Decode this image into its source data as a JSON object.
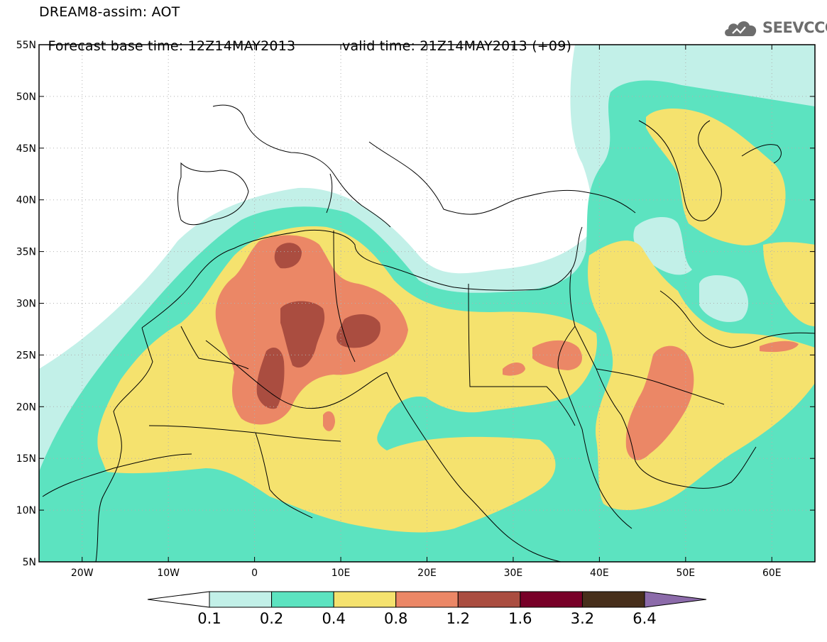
{
  "header": {
    "title": "DREAM8-assim: AOT",
    "forecast_base": "Forecast base time: 12Z14MAY2013",
    "valid_time": "valid time: 21Z14MAY2013 (+09)",
    "logo_text": "SEEVCCC",
    "logo_icon": "cloud-logo-icon"
  },
  "map": {
    "lon_range": [
      -25,
      65
    ],
    "lat_range": [
      5,
      55
    ],
    "lat_ticks": [
      {
        "value": 55,
        "label": "55N"
      },
      {
        "value": 50,
        "label": "50N"
      },
      {
        "value": 45,
        "label": "45N"
      },
      {
        "value": 40,
        "label": "40N"
      },
      {
        "value": 35,
        "label": "35N"
      },
      {
        "value": 30,
        "label": "30N"
      },
      {
        "value": 25,
        "label": "25N"
      },
      {
        "value": 20,
        "label": "20N"
      },
      {
        "value": 15,
        "label": "15N"
      },
      {
        "value": 10,
        "label": "10N"
      },
      {
        "value": 5,
        "label": "5N"
      }
    ],
    "lon_ticks": [
      {
        "value": -20,
        "label": "20W"
      },
      {
        "value": -10,
        "label": "10W"
      },
      {
        "value": 0,
        "label": "0"
      },
      {
        "value": 10,
        "label": "10E"
      },
      {
        "value": 20,
        "label": "20E"
      },
      {
        "value": 30,
        "label": "30E"
      },
      {
        "value": 40,
        "label": "40E"
      },
      {
        "value": 50,
        "label": "50E"
      },
      {
        "value": 60,
        "label": "60E"
      }
    ],
    "grid": "dotted"
  },
  "colorbar": {
    "labels": [
      "0.1",
      "0.2",
      "0.4",
      "0.8",
      "1.2",
      "1.6",
      "3.2",
      "6.4"
    ],
    "colors": [
      "#ffffff",
      "#c2f0e8",
      "#5ce3c0",
      "#f5e26e",
      "#eb8766",
      "#aa4d40",
      "#780028",
      "#472f1b",
      "#8c6baa"
    ]
  }
}
